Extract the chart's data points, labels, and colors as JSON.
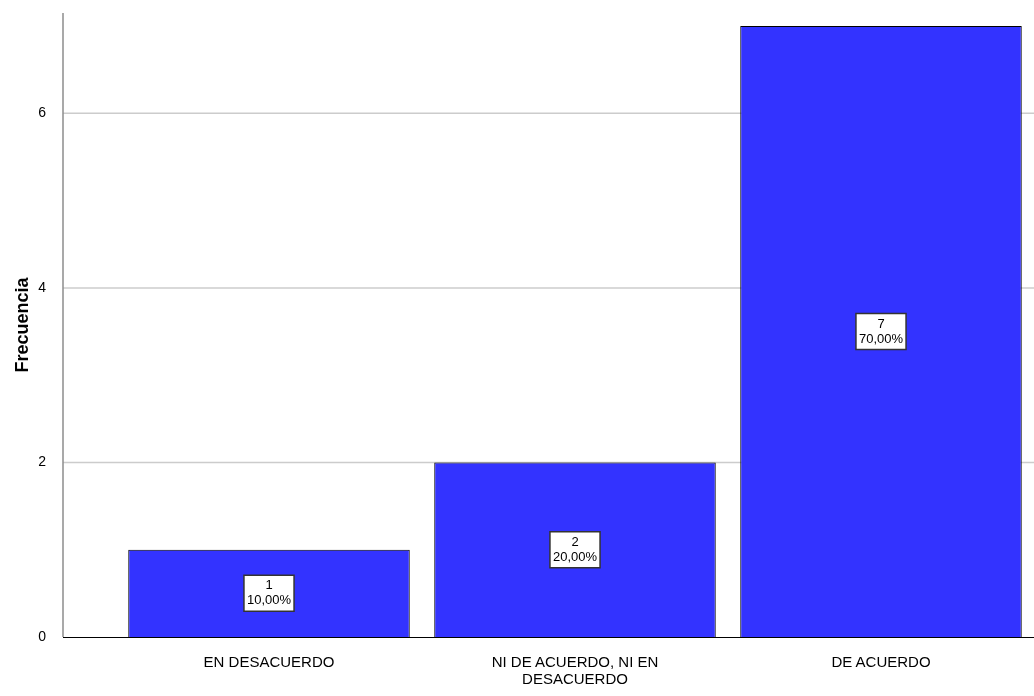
{
  "chart_data": {
    "type": "bar",
    "ylabel": "Frecuencia",
    "categories": [
      "EN DESACUERDO",
      "NI DE ACUERDO, NI EN DESACUERDO",
      "DE ACUERDO"
    ],
    "values": [
      1,
      2,
      7
    ],
    "color": "#3333ff",
    "value_labels": [
      "1\n10,00%",
      "2\n20,00%",
      "7\n70,00%"
    ],
    "ylim": [
      0,
      7.15
    ],
    "yticks": [
      0,
      2,
      4,
      6
    ],
    "grid": "y",
    "legend": false
  }
}
